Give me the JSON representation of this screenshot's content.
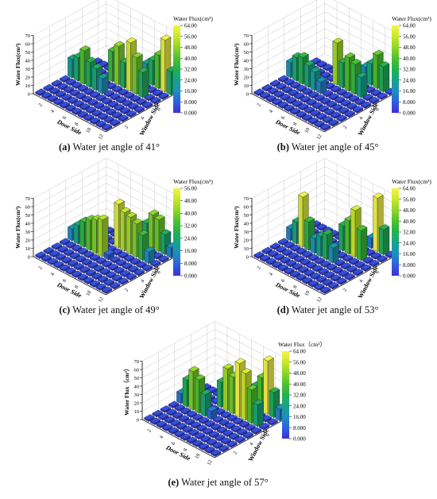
{
  "figure": {
    "panels": [
      {
        "id": "a",
        "letter": "(a)",
        "caption": "Water jet angle of 41°",
        "legend_title": "Water Flux(cm³)",
        "z_ticks": [
          "0.000",
          "8.000",
          "16.00",
          "24.00",
          "32.00",
          "40.00",
          "48.00",
          "56.00",
          "64.00"
        ],
        "z_max": 64
      },
      {
        "id": "b",
        "letter": "(b)",
        "caption": "Water jet angle of 45°",
        "legend_title": "Water Flux(cm³)",
        "z_ticks": [
          "0.000",
          "8.000",
          "16.00",
          "24.00",
          "32.00",
          "40.00",
          "48.00",
          "56.00",
          "64.00"
        ],
        "z_max": 64
      },
      {
        "id": "c",
        "letter": "(c)",
        "caption": "Water jet angle of 49°",
        "legend_title": "Water Flux(cm³)",
        "z_ticks": [
          "0.000",
          "8.000",
          "16.00",
          "24.00",
          "32.00",
          "40.00",
          "48.00",
          "56.00"
        ],
        "z_max": 56
      },
      {
        "id": "d",
        "letter": "(d)",
        "caption": "Water jet angle of 53°",
        "legend_title": "Water Flux(cm³)",
        "z_ticks": [
          "0.000",
          "8.000",
          "16.00",
          "24.00",
          "32.00",
          "40.00",
          "48.00",
          "56.00",
          "64.00"
        ],
        "z_max": 64
      },
      {
        "id": "e",
        "letter": "(e)",
        "caption": "Water jet angle of 57°",
        "legend_title": "Water Flux（cm³）",
        "z_ticks": [
          "0.000",
          "8.000",
          "16.00",
          "24.00",
          "32.00",
          "40.00",
          "48.00",
          "56.00",
          "64.00"
        ],
        "z_max": 64
      }
    ]
  },
  "chart_data": [
    {
      "type": "bar3d",
      "x_label": "Door Side",
      "x_ticks": [
        "2",
        "4",
        "6",
        "8",
        "10",
        "12"
      ],
      "y_label": "Window Side",
      "y_ticks": [
        "2",
        "4",
        "6"
      ],
      "z_label": "Water Flux(cm³)",
      "z_ticks": [
        "0",
        "10",
        "20",
        "30",
        "40",
        "50",
        "60",
        "70"
      ],
      "zlim": [
        0,
        70
      ],
      "rows": [
        [
          2,
          2,
          2,
          2,
          2,
          2,
          2,
          2,
          2,
          2,
          2,
          2
        ],
        [
          2,
          2,
          2,
          2,
          2,
          2,
          2,
          2,
          2,
          2,
          2,
          2
        ],
        [
          2,
          2,
          2,
          2,
          2,
          2,
          2,
          2,
          2,
          2,
          2,
          2
        ],
        [
          2,
          2,
          2,
          2,
          2,
          2,
          2,
          2,
          2,
          2,
          2,
          2
        ],
        [
          22,
          28,
          40,
          30,
          26,
          18,
          2,
          2,
          2,
          2,
          2,
          2
        ],
        [
          2,
          2,
          2,
          2,
          2,
          2,
          2,
          2,
          2,
          2,
          2,
          2
        ],
        [
          2,
          2,
          2,
          2,
          36,
          46,
          30,
          58,
          44,
          30,
          2,
          2
        ],
        [
          2,
          2,
          2,
          2,
          2,
          2,
          2,
          2,
          2,
          2,
          2,
          2
        ],
        [
          0,
          0,
          0,
          0,
          0,
          0,
          0,
          22,
          30,
          40,
          62,
          28
        ]
      ]
    },
    {
      "type": "bar3d",
      "x_label": "Door Side",
      "x_ticks": [
        "2",
        "4",
        "6",
        "8",
        "10",
        "12"
      ],
      "y_label": "Window Side",
      "y_ticks": [
        "2",
        "4",
        "6"
      ],
      "z_label": "Water Flux(cm³)",
      "z_ticks": [
        "0",
        "10",
        "20",
        "30",
        "40",
        "50",
        "60",
        "70"
      ],
      "zlim": [
        0,
        70
      ],
      "rows": [
        [
          2,
          2,
          2,
          2,
          2,
          2,
          2,
          2,
          2,
          2,
          2,
          2
        ],
        [
          2,
          2,
          2,
          2,
          2,
          2,
          2,
          2,
          2,
          2,
          2,
          2
        ],
        [
          2,
          2,
          2,
          2,
          2,
          2,
          2,
          2,
          2,
          2,
          2,
          2
        ],
        [
          2,
          2,
          2,
          2,
          2,
          2,
          2,
          2,
          2,
          2,
          2,
          2
        ],
        [
          18,
          28,
          32,
          26,
          22,
          14,
          2,
          2,
          2,
          2,
          2,
          2
        ],
        [
          2,
          2,
          2,
          2,
          2,
          2,
          2,
          2,
          2,
          2,
          2,
          2
        ],
        [
          2,
          2,
          2,
          2,
          2,
          50,
          30,
          40,
          36,
          24,
          2,
          2
        ],
        [
          2,
          2,
          2,
          2,
          2,
          2,
          2,
          2,
          2,
          2,
          2,
          2
        ],
        [
          0,
          0,
          0,
          0,
          0,
          0,
          0,
          18,
          26,
          40,
          30,
          2
        ]
      ]
    },
    {
      "type": "bar3d",
      "x_label": "Door Side",
      "x_ticks": [
        "2",
        "4",
        "6",
        "8",
        "10",
        "12"
      ],
      "y_label": "Window Side",
      "y_ticks": [
        "2",
        "4",
        "6"
      ],
      "z_label": "Water Flux(cm³)",
      "z_ticks": [
        "0",
        "10",
        "20",
        "30",
        "40",
        "50",
        "60",
        "70"
      ],
      "zlim": [
        0,
        70
      ],
      "rows": [
        [
          2,
          2,
          2,
          2,
          2,
          2,
          2,
          2,
          2,
          2,
          2,
          2
        ],
        [
          2,
          2,
          2,
          2,
          2,
          2,
          2,
          2,
          2,
          2,
          2,
          2
        ],
        [
          2,
          2,
          2,
          2,
          2,
          2,
          2,
          2,
          2,
          2,
          2,
          2
        ],
        [
          2,
          2,
          2,
          2,
          2,
          2,
          2,
          2,
          2,
          2,
          2,
          2
        ],
        [
          14,
          22,
          30,
          36,
          40,
          44,
          6,
          2,
          2,
          2,
          2,
          2
        ],
        [
          2,
          2,
          2,
          2,
          2,
          2,
          2,
          2,
          2,
          2,
          2,
          2
        ],
        [
          2,
          2,
          2,
          2,
          2,
          52,
          46,
          44,
          40,
          30,
          14,
          2
        ],
        [
          2,
          2,
          2,
          2,
          2,
          2,
          2,
          2,
          2,
          2,
          2,
          2
        ],
        [
          0,
          0,
          0,
          0,
          0,
          0,
          0,
          26,
          40,
          38,
          24,
          12
        ]
      ]
    },
    {
      "type": "bar3d",
      "x_label": "Door Side",
      "x_ticks": [
        "2",
        "4",
        "6",
        "8",
        "10",
        "12"
      ],
      "y_label": "Window Side",
      "y_ticks": [
        "2",
        "4",
        "6"
      ],
      "z_label": "Water Flux(cm³)",
      "z_ticks": [
        "0",
        "10",
        "20",
        "30",
        "40",
        "50",
        "60",
        "70"
      ],
      "zlim": [
        0,
        70
      ],
      "rows": [
        [
          2,
          2,
          2,
          2,
          2,
          2,
          2,
          2,
          2,
          2,
          2,
          2
        ],
        [
          2,
          2,
          2,
          2,
          2,
          2,
          2,
          2,
          2,
          2,
          2,
          2
        ],
        [
          2,
          2,
          2,
          2,
          2,
          2,
          2,
          2,
          2,
          2,
          2,
          2
        ],
        [
          2,
          2,
          2,
          2,
          2,
          2,
          2,
          2,
          2,
          2,
          2,
          2
        ],
        [
          14,
          26,
          60,
          34,
          18,
          24,
          30,
          18,
          2,
          2,
          2,
          2
        ],
        [
          2,
          2,
          2,
          2,
          2,
          2,
          2,
          2,
          2,
          2,
          2,
          2
        ],
        [
          2,
          2,
          2,
          2,
          2,
          2,
          30,
          40,
          56,
          36,
          2,
          2
        ],
        [
          2,
          2,
          2,
          2,
          2,
          2,
          2,
          2,
          2,
          2,
          2,
          2
        ],
        [
          0,
          0,
          0,
          0,
          0,
          0,
          0,
          0,
          12,
          64,
          30,
          2
        ]
      ]
    },
    {
      "type": "bar3d",
      "x_label": "Door Side",
      "x_ticks": [
        "2",
        "4",
        "6",
        "8",
        "10",
        "12"
      ],
      "y_label": "Window Side",
      "y_ticks": [
        "2",
        "4",
        "6"
      ],
      "z_label": "Water Flux（cm³）",
      "z_ticks": [
        "0",
        "10",
        "20",
        "30",
        "40",
        "50",
        "60",
        "70"
      ],
      "zlim": [
        0,
        70
      ],
      "rows": [
        [
          2,
          2,
          2,
          2,
          2,
          2,
          2,
          2,
          2,
          2,
          2,
          2
        ],
        [
          2,
          2,
          2,
          2,
          2,
          2,
          2,
          2,
          2,
          2,
          2,
          2
        ],
        [
          2,
          2,
          2,
          2,
          2,
          2,
          2,
          2,
          2,
          2,
          2,
          2
        ],
        [
          2,
          2,
          2,
          2,
          2,
          2,
          2,
          2,
          2,
          2,
          2,
          2
        ],
        [
          12,
          32,
          46,
          40,
          26,
          10,
          2,
          2,
          2,
          2,
          2,
          2
        ],
        [
          2,
          2,
          2,
          2,
          2,
          2,
          2,
          2,
          2,
          2,
          2,
          2
        ],
        [
          2,
          2,
          2,
          2,
          30,
          50,
          44,
          64,
          56,
          40,
          26,
          2
        ],
        [
          2,
          2,
          2,
          2,
          2,
          2,
          2,
          2,
          2,
          2,
          2,
          2
        ],
        [
          0,
          0,
          0,
          0,
          0,
          0,
          0,
          26,
          40,
          64,
          30,
          14
        ]
      ]
    }
  ],
  "colors": {
    "colormap": [
      "#3b2fd8",
      "#2f5fe0",
      "#1f8fbf",
      "#16a38a",
      "#22b24a",
      "#4ec22e",
      "#8fd627",
      "#c9e82a",
      "#f4f54a"
    ],
    "axis": "#222222",
    "grid": "#c8c8c8"
  }
}
